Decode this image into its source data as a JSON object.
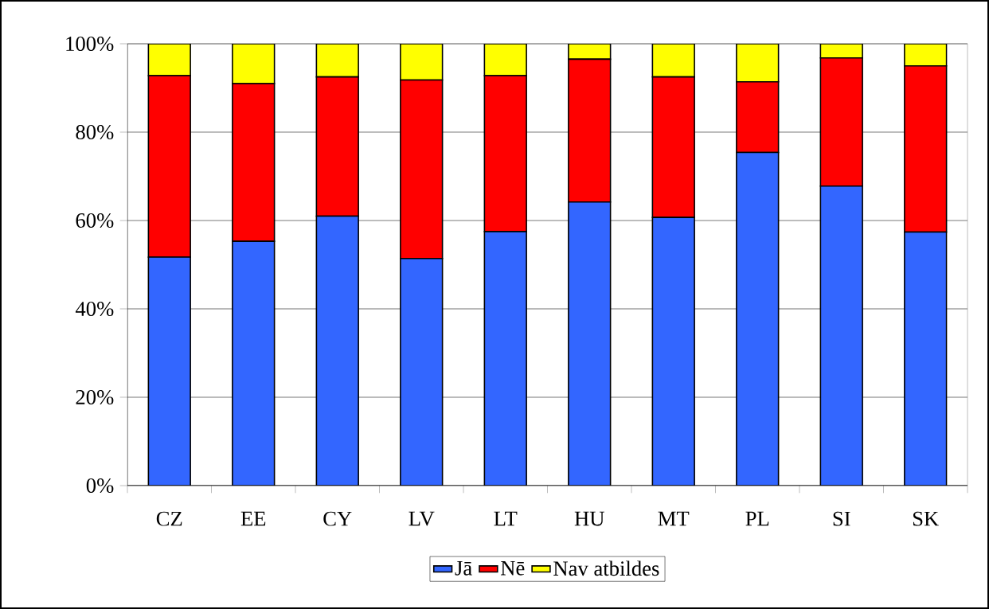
{
  "chart_data": {
    "type": "bar",
    "stacked": true,
    "categories": [
      "CZ",
      "EE",
      "CY",
      "LV",
      "LT",
      "HU",
      "MT",
      "PL",
      "SI",
      "SK"
    ],
    "series": [
      {
        "name": "Jā",
        "color": "#3366ff",
        "values": [
          51.7,
          55.3,
          61.0,
          51.4,
          57.5,
          64.2,
          60.7,
          75.4,
          67.8,
          57.4
        ]
      },
      {
        "name": "Nē",
        "color": "#ff0000",
        "values": [
          41.1,
          35.7,
          31.5,
          40.4,
          35.3,
          32.3,
          31.8,
          16.0,
          29.0,
          37.6
        ]
      },
      {
        "name": "Nav atbildes",
        "color": "#ffff00",
        "values": [
          7.2,
          9.0,
          7.5,
          8.2,
          7.2,
          3.5,
          7.5,
          8.6,
          3.2,
          5.0
        ]
      }
    ],
    "ylim": [
      0,
      100
    ],
    "yticks": [
      {
        "value": 0,
        "label": "0%"
      },
      {
        "value": 20,
        "label": "20%"
      },
      {
        "value": 40,
        "label": "40%"
      },
      {
        "value": 60,
        "label": "60%"
      },
      {
        "value": 80,
        "label": "80%"
      },
      {
        "value": 100,
        "label": "100%"
      }
    ],
    "grid": "y",
    "legend": "bottom"
  }
}
